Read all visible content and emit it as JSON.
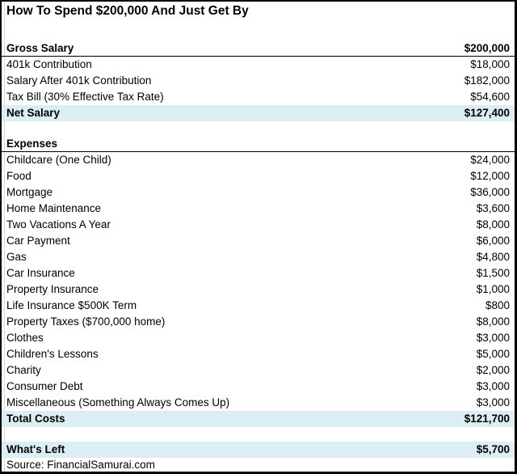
{
  "colors": {
    "highlight": "#daeef3",
    "border": "#000000",
    "gridline": "#d8d8d8",
    "text": "#000000"
  },
  "table": {
    "rows": [
      {
        "kind": "title",
        "label": "How To Spend $200,000 And Just Get By",
        "value": ""
      },
      {
        "kind": "spacer",
        "label": "",
        "value": ""
      },
      {
        "label": "Gross Salary",
        "value": "$200,000",
        "bold": true,
        "rule_below": true
      },
      {
        "label": "401k Contribution",
        "value": "$18,000"
      },
      {
        "label": "Salary After 401k Contribution",
        "value": "$182,000"
      },
      {
        "label": "Tax Bill (30% Effective Tax Rate)",
        "value": "$54,600"
      },
      {
        "label": "Net Salary",
        "value": "$127,400",
        "bold": true,
        "highlight": true
      },
      {
        "kind": "spacer",
        "label": "",
        "value": ""
      },
      {
        "label": "Expenses",
        "value": "",
        "bold": true,
        "rule_below": true
      },
      {
        "label": "Childcare (One Child)",
        "value": "$24,000"
      },
      {
        "label": "Food",
        "value": "$12,000"
      },
      {
        "label": "Mortgage",
        "value": "$36,000"
      },
      {
        "label": "Home Maintenance",
        "value": "$3,600"
      },
      {
        "label": "Two Vacations A Year",
        "value": "$8,000"
      },
      {
        "label": "Car Payment",
        "value": "$6,000"
      },
      {
        "label": "Gas",
        "value": "$4,800"
      },
      {
        "label": "Car Insurance",
        "value": "$1,500"
      },
      {
        "label": "Property Insurance",
        "value": "$1,000"
      },
      {
        "label": "Life Insurance $500K Term",
        "value": "$800"
      },
      {
        "label": "Property Taxes ($700,000 home)",
        "value": "$8,000"
      },
      {
        "label": "Clothes",
        "value": "$3,000"
      },
      {
        "label": "Children's Lessons",
        "value": "$5,000"
      },
      {
        "label": "Charity",
        "value": "$2,000"
      },
      {
        "label": "Consumer Debt",
        "value": "$3,000"
      },
      {
        "label": "Miscellaneous (Something Always Comes Up)",
        "value": "$3,000"
      },
      {
        "label": "Total Costs",
        "value": "$121,700",
        "bold": true,
        "highlight": true
      },
      {
        "kind": "spacer",
        "label": "",
        "value": ""
      },
      {
        "label": "What's Left",
        "value": "$5,700",
        "bold": true,
        "highlight": true
      },
      {
        "kind": "source",
        "label": "Source: FinancialSamurai.com",
        "value": ""
      }
    ]
  }
}
